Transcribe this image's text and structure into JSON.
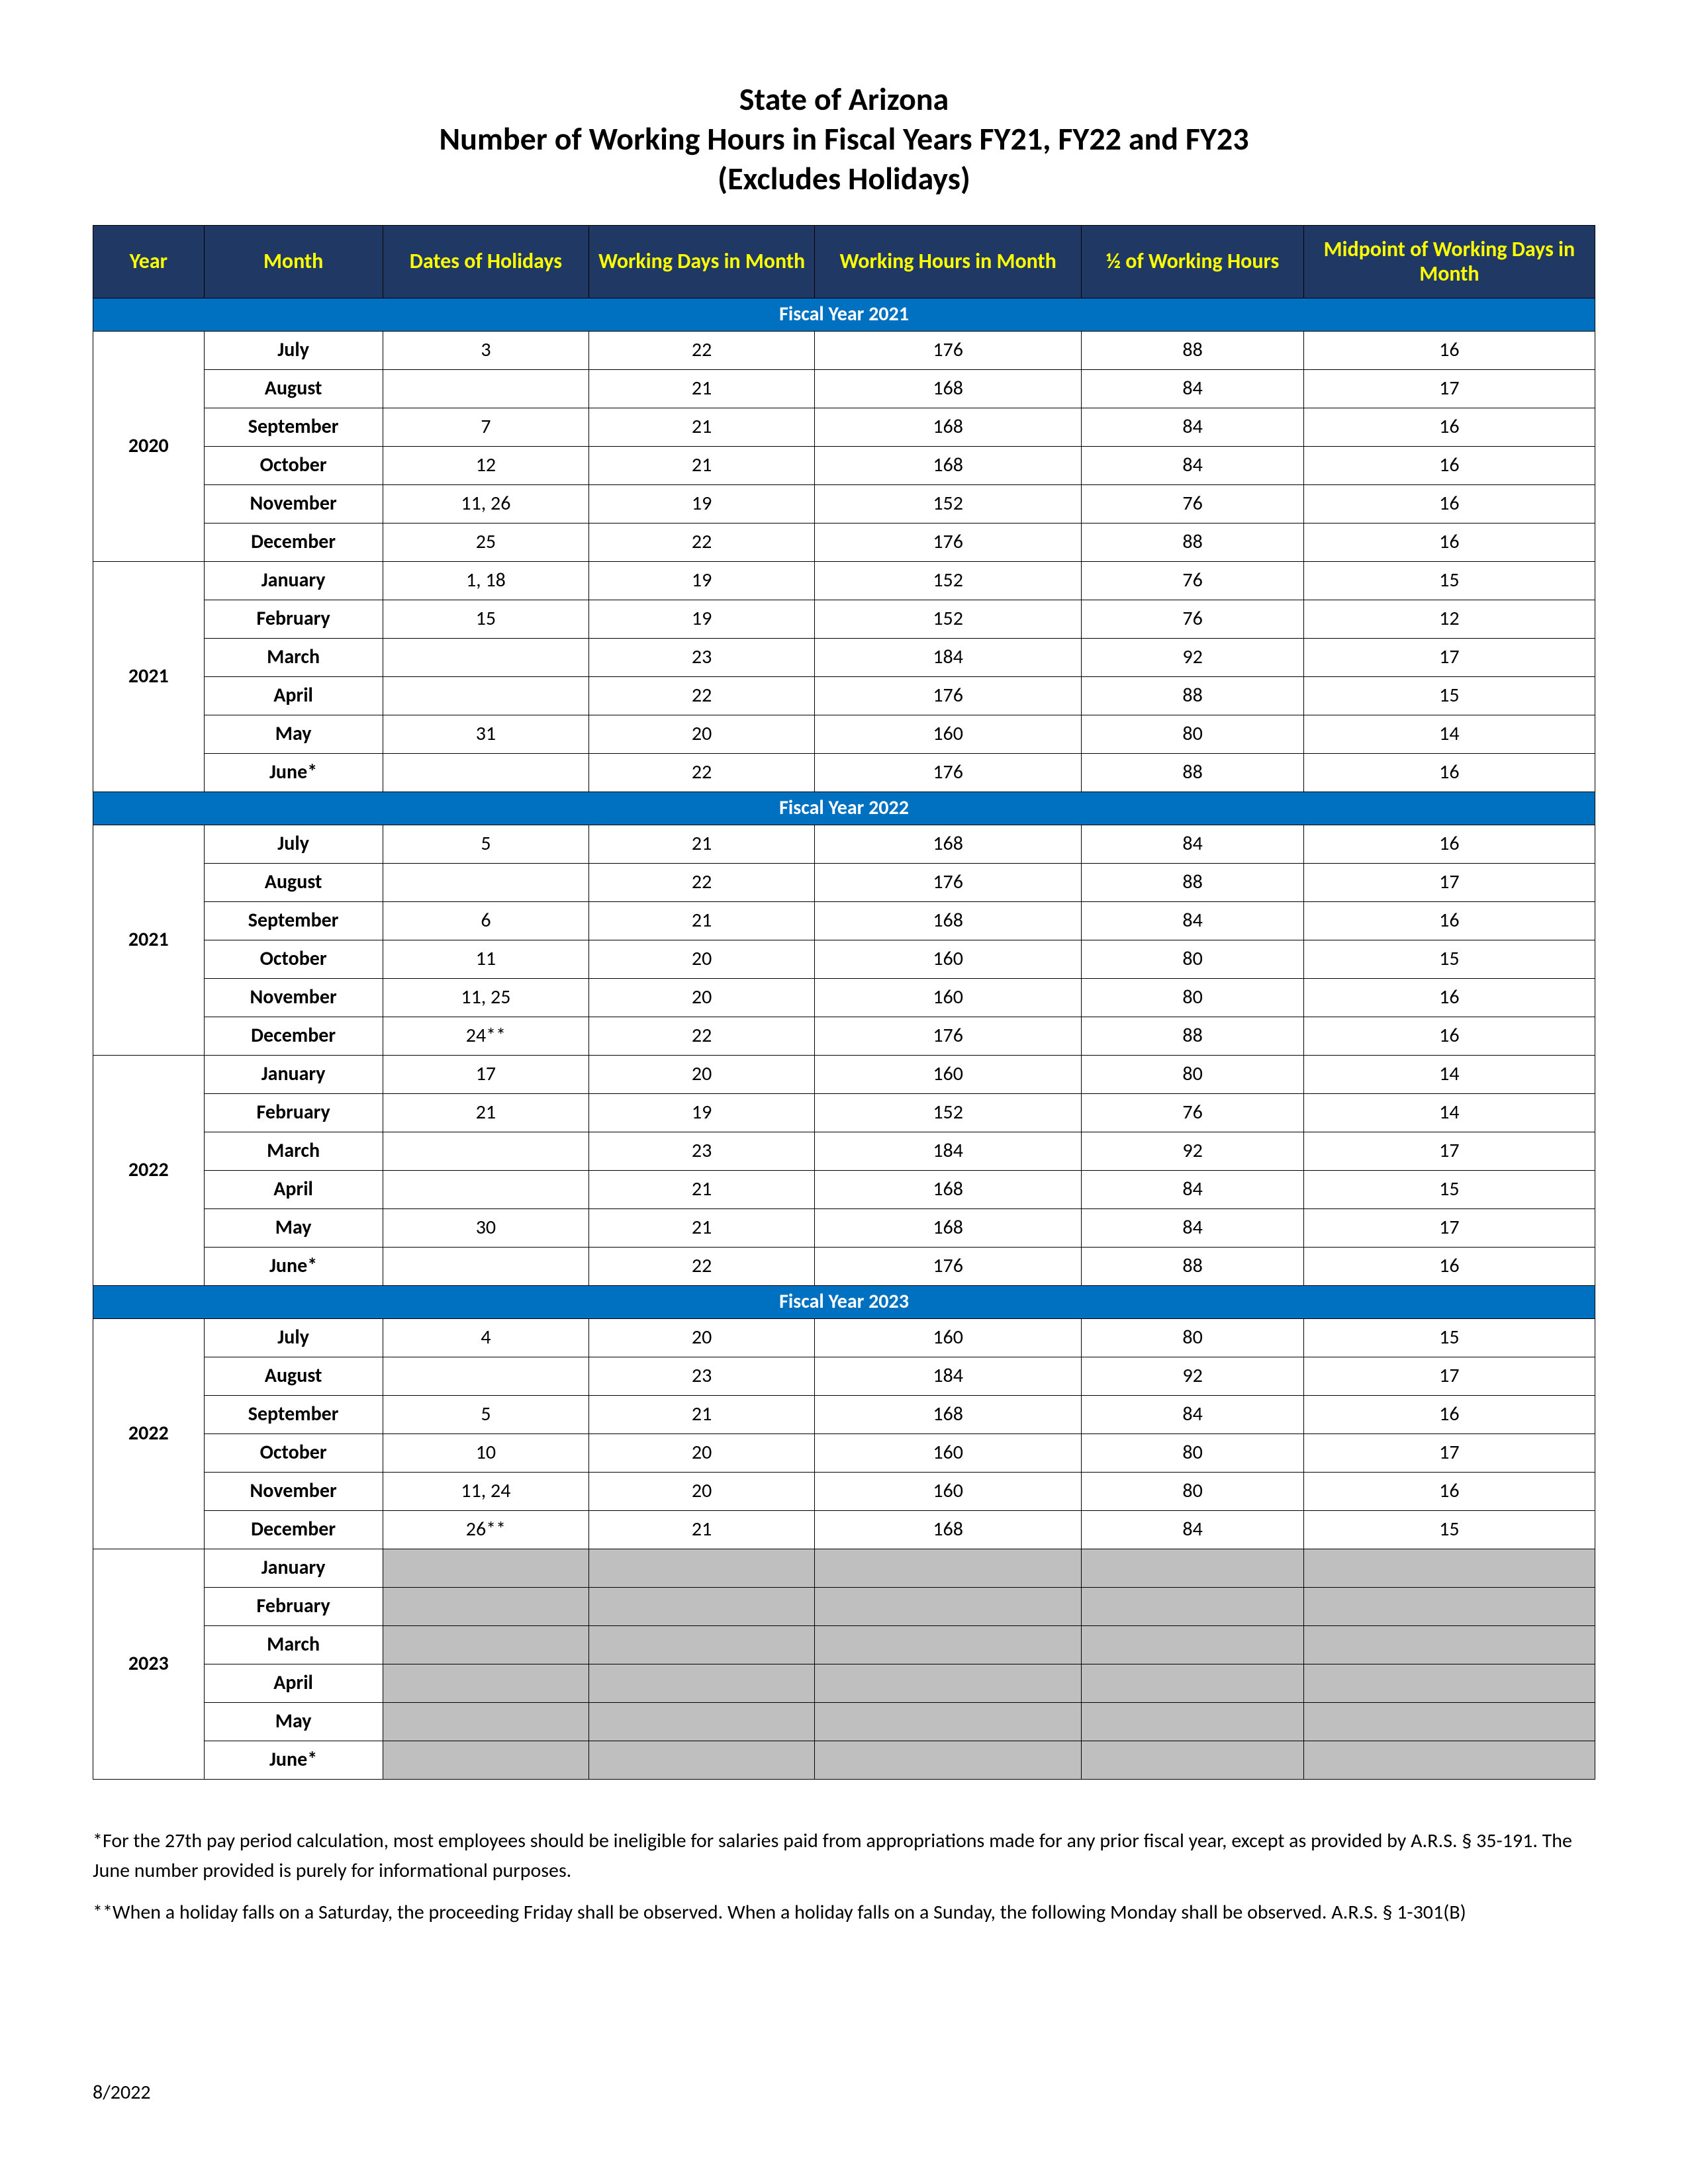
{
  "colors": {
    "header_bg": "#1f3864",
    "header_fg": "#ffff00",
    "year_bg": "#0070c0",
    "year_fg": "#ffffff",
    "cell_bg": "#ffffff",
    "cell_fg": "#000000",
    "grey_bg": "#bfbfbf",
    "border": "#000000",
    "page_bg": "#ffffff"
  },
  "title": {
    "line1": "State of Arizona",
    "line2": "Number of Working Hours in Fiscal Years FY21, FY22 and FY23",
    "line3": "(Excludes Holidays)"
  },
  "columns": [
    {
      "key": "year",
      "label": "Year",
      "width_pct": 6.4
    },
    {
      "key": "month",
      "label": "Month",
      "width_pct": 10.3
    },
    {
      "key": "holidays",
      "label": "Dates of Holidays",
      "width_pct": 11.9
    },
    {
      "key": "work_days",
      "label": "Working Days in Month",
      "width_pct": 13.0
    },
    {
      "key": "work_hrs",
      "label": "Working Hours in Month",
      "width_pct": 15.4
    },
    {
      "key": "half_hrs",
      "label": "½ of Working Hours",
      "width_pct": 12.8
    },
    {
      "key": "midpoint",
      "label": "Midpoint of Working Days in Month",
      "width_pct": 16.8
    }
  ],
  "header_fontsize": 32,
  "cell_fontsize": 30,
  "years": [
    {
      "label": "Fiscal Year 2021",
      "year_cell": "2020",
      "rows": [
        {
          "month": "July",
          "holidays": "3",
          "work_days": "22",
          "work_hrs": "176",
          "half_hrs": "88",
          "midpoint": "16"
        },
        {
          "month": "August",
          "holidays": "",
          "work_days": "21",
          "work_hrs": "168",
          "half_hrs": "84",
          "midpoint": "17"
        },
        {
          "month": "September",
          "holidays": "7",
          "work_days": "21",
          "work_hrs": "168",
          "half_hrs": "84",
          "midpoint": "16"
        },
        {
          "month": "October",
          "holidays": "12",
          "work_days": "21",
          "work_hrs": "168",
          "half_hrs": "84",
          "midpoint": "16"
        },
        {
          "month": "November",
          "holidays": "11, 26",
          "work_days": "19",
          "work_hrs": "152",
          "half_hrs": "76",
          "midpoint": "16"
        },
        {
          "month": "December",
          "holidays": "25",
          "work_days": "22",
          "work_hrs": "176",
          "half_hrs": "88",
          "midpoint": "16"
        }
      ],
      "year_cell2": "2021",
      "rows2": [
        {
          "month": "January",
          "holidays": "1, 18",
          "work_days": "19",
          "work_hrs": "152",
          "half_hrs": "76",
          "midpoint": "15"
        },
        {
          "month": "February",
          "holidays": "15",
          "work_days": "19",
          "work_hrs": "152",
          "half_hrs": "76",
          "midpoint": "12"
        },
        {
          "month": "March",
          "holidays": "",
          "work_days": "23",
          "work_hrs": "184",
          "half_hrs": "92",
          "midpoint": "17"
        },
        {
          "month": "April",
          "holidays": "",
          "work_days": "22",
          "work_hrs": "176",
          "half_hrs": "88",
          "midpoint": "15"
        },
        {
          "month": "May",
          "holidays": "31",
          "work_days": "20",
          "work_hrs": "160",
          "half_hrs": "80",
          "midpoint": "14"
        },
        {
          "month": "June*",
          "holidays": "",
          "work_days": "22",
          "work_hrs": "176",
          "half_hrs": "88",
          "midpoint": "16"
        }
      ]
    },
    {
      "label": "Fiscal Year 2022",
      "year_cell": "2021",
      "rows": [
        {
          "month": "July",
          "holidays": "5",
          "work_days": "21",
          "work_hrs": "168",
          "half_hrs": "84",
          "midpoint": "16"
        },
        {
          "month": "August",
          "holidays": "",
          "work_days": "22",
          "work_hrs": "176",
          "half_hrs": "88",
          "midpoint": "17"
        },
        {
          "month": "September",
          "holidays": "6",
          "work_days": "21",
          "work_hrs": "168",
          "half_hrs": "84",
          "midpoint": "16"
        },
        {
          "month": "October",
          "holidays": "11",
          "work_days": "20",
          "work_hrs": "160",
          "half_hrs": "80",
          "midpoint": "15"
        },
        {
          "month": "November",
          "holidays": "11, 25",
          "work_days": "20",
          "work_hrs": "160",
          "half_hrs": "80",
          "midpoint": "16"
        },
        {
          "month": "December",
          "holidays": "24**",
          "work_days": "22",
          "work_hrs": "176",
          "half_hrs": "88",
          "midpoint": "16"
        }
      ],
      "year_cell2": "2022",
      "rows2": [
        {
          "month": "January",
          "holidays": "17",
          "work_days": "20",
          "work_hrs": "160",
          "half_hrs": "80",
          "midpoint": "14"
        },
        {
          "month": "February",
          "holidays": "21",
          "work_days": "19",
          "work_hrs": "152",
          "half_hrs": "76",
          "midpoint": "14"
        },
        {
          "month": "March",
          "holidays": "",
          "work_days": "23",
          "work_hrs": "184",
          "half_hrs": "92",
          "midpoint": "17"
        },
        {
          "month": "April",
          "holidays": "",
          "work_days": "21",
          "work_hrs": "168",
          "half_hrs": "84",
          "midpoint": "15"
        },
        {
          "month": "May",
          "holidays": "30",
          "work_days": "21",
          "work_hrs": "168",
          "half_hrs": "84",
          "midpoint": "17"
        },
        {
          "month": "June*",
          "holidays": "",
          "work_days": "22",
          "work_hrs": "176",
          "half_hrs": "88",
          "midpoint": "16"
        }
      ]
    },
    {
      "label": "Fiscal Year 2023",
      "year_cell": "2022",
      "rows": [
        {
          "month": "July",
          "holidays": "4",
          "work_days": "20",
          "work_hrs": "160",
          "half_hrs": "80",
          "midpoint": "15"
        },
        {
          "month": "August",
          "holidays": "",
          "work_days": "23",
          "work_hrs": "184",
          "half_hrs": "92",
          "midpoint": "17"
        },
        {
          "month": "September",
          "holidays": "5",
          "work_days": "21",
          "work_hrs": "168",
          "half_hrs": "84",
          "midpoint": "16"
        },
        {
          "month": "October",
          "holidays": "10",
          "work_days": "20",
          "work_hrs": "160",
          "half_hrs": "80",
          "midpoint": "17"
        },
        {
          "month": "November",
          "holidays": "11, 24",
          "work_days": "20",
          "work_hrs": "160",
          "half_hrs": "80",
          "midpoint": "16"
        },
        {
          "month": "December",
          "holidays": "26**",
          "work_days": "21",
          "work_hrs": "168",
          "half_hrs": "84",
          "midpoint": "15"
        }
      ],
      "year_cell2": "2023",
      "rows2_grey": true,
      "rows2": [
        {
          "month": "January",
          "holidays": "",
          "work_days": "",
          "work_hrs": "",
          "half_hrs": "",
          "midpoint": ""
        },
        {
          "month": "February",
          "holidays": "",
          "work_days": "",
          "work_hrs": "",
          "half_hrs": "",
          "midpoint": ""
        },
        {
          "month": "March",
          "holidays": "",
          "work_days": "",
          "work_hrs": "",
          "half_hrs": "",
          "midpoint": ""
        },
        {
          "month": "April",
          "holidays": "",
          "work_days": "",
          "work_hrs": "",
          "half_hrs": "",
          "midpoint": ""
        },
        {
          "month": "May",
          "holidays": "",
          "work_days": "",
          "work_hrs": "",
          "half_hrs": "",
          "midpoint": ""
        },
        {
          "month": "June*",
          "holidays": "",
          "work_days": "",
          "work_hrs": "",
          "half_hrs": "",
          "midpoint": ""
        }
      ]
    }
  ],
  "footnotes": [
    "*For the 27th pay period calculation, most employees should be ineligible for salaries paid from appropriations made for any prior fiscal year, except as provided by A.R.S. § 35-191. The June number provided is purely for informational purposes.",
    "**When a holiday falls on a Saturday, the proceeding Friday shall be observed. When a holiday falls on a Sunday, the following Monday shall be observed.  A.R.S. § 1-301(B)"
  ],
  "footer": "8/2022"
}
